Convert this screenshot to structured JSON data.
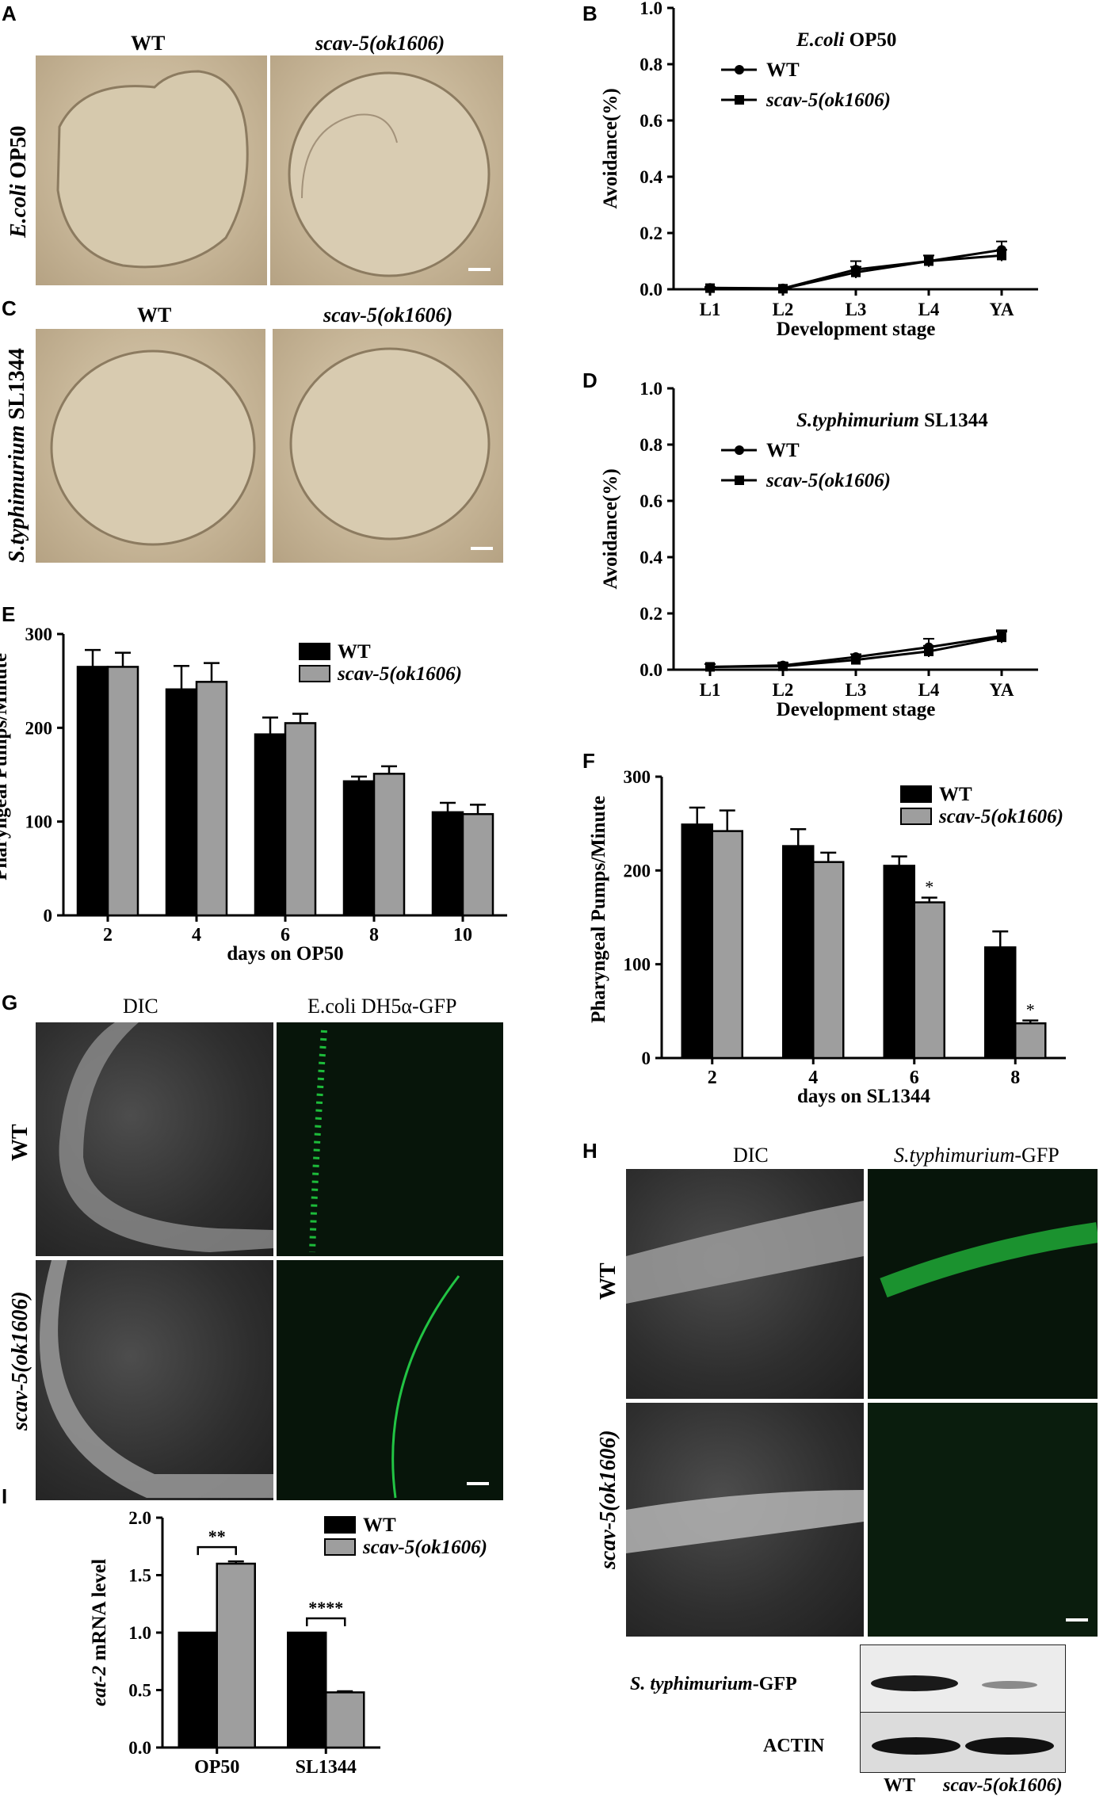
{
  "panels": {
    "A": {
      "letter": "A",
      "left_title": "WT",
      "right_title": "scav-5(ok1606)",
      "side_label_ital": "E.coli",
      "side_label_rest": " OP50"
    },
    "B": {
      "letter": "B"
    },
    "C": {
      "letter": "C",
      "left_title": "WT",
      "right_title": "scav-5(ok1606)",
      "side_label_ital": "S.typhimurium",
      "side_label_rest": " SL1344"
    },
    "D": {
      "letter": "D"
    },
    "E": {
      "letter": "E"
    },
    "F": {
      "letter": "F"
    },
    "G": {
      "letter": "G",
      "col1": "DIC",
      "col2": "E.coli DH5α-GFP",
      "row1": "WT",
      "row2": "scav-5(ok1606)"
    },
    "H": {
      "letter": "H",
      "col1": "DIC",
      "col2_ital": "S.typhimurium",
      "col2_rest": "-GFP",
      "row1": "WT",
      "row2": "scav-5(ok1606)",
      "blot_label1_ital": "S. typhimurium",
      "blot_label1_rest": "-GFP",
      "blot_label2": "ACTIN",
      "lane1": "WT",
      "lane2": "scav-5(ok1606)"
    },
    "I": {
      "letter": "I"
    }
  },
  "chart_data": [
    {
      "id": "B",
      "type": "line",
      "title_ital": "E.coli",
      "title_rest": " OP50",
      "xlabel": "Development stage",
      "ylabel": "Avoidance(%)",
      "categories": [
        "L1",
        "L2",
        "L3",
        "L4",
        "YA"
      ],
      "ylim": [
        0,
        1.0
      ],
      "yticks": [
        "0.0",
        "0.2",
        "0.4",
        "0.6",
        "0.8",
        "1.0"
      ],
      "series": [
        {
          "name": "WT",
          "marker": "circle",
          "values": [
            0.005,
            0.003,
            0.07,
            0.1,
            0.14
          ],
          "err": [
            0.003,
            0.002,
            0.03,
            0.02,
            0.03
          ]
        },
        {
          "name": "scav-5(ok1606)",
          "marker": "square",
          "values": [
            0.004,
            0.002,
            0.06,
            0.1,
            0.12
          ],
          "err": [
            0.003,
            0.002,
            0.02,
            0.02,
            0.02
          ]
        }
      ]
    },
    {
      "id": "D",
      "type": "line",
      "title_ital": "S.typhimurium",
      "title_rest": " SL1344",
      "xlabel": "Development stage",
      "ylabel": "Avoidance(%)",
      "categories": [
        "L1",
        "L2",
        "L3",
        "L4",
        "YA"
      ],
      "ylim": [
        0,
        1.0
      ],
      "yticks": [
        "0.0",
        "0.2",
        "0.4",
        "0.6",
        "0.8",
        "1.0"
      ],
      "series": [
        {
          "name": "WT",
          "marker": "circle",
          "values": [
            0.01,
            0.015,
            0.045,
            0.08,
            0.12
          ],
          "err": [
            0.01,
            0.01,
            0.01,
            0.03,
            0.02
          ]
        },
        {
          "name": "scav-5(ok1606)",
          "marker": "square",
          "values": [
            0.01,
            0.012,
            0.035,
            0.065,
            0.115
          ],
          "err": [
            0.01,
            0.01,
            0.01,
            0.02,
            0.02
          ]
        }
      ]
    },
    {
      "id": "E",
      "type": "bar",
      "xlabel": "days on OP50",
      "ylabel": "Pharyngeal Pumps/Minute",
      "categories": [
        "2",
        "4",
        "6",
        "8",
        "10"
      ],
      "ylim": [
        0,
        300
      ],
      "yticks": [
        "0",
        "100",
        "200",
        "300"
      ],
      "series": [
        {
          "name": "WT",
          "color": "#000000",
          "values": [
            265,
            241,
            193,
            143,
            110
          ],
          "err": [
            18,
            25,
            18,
            5,
            10
          ]
        },
        {
          "name": "scav-5(ok1606)",
          "color": "#9e9e9e",
          "values": [
            265,
            249,
            205,
            151,
            108
          ],
          "err": [
            15,
            20,
            10,
            8,
            10
          ]
        }
      ],
      "annotations": []
    },
    {
      "id": "F",
      "type": "bar",
      "xlabel": "days on SL1344",
      "ylabel": "Pharyngeal Pumps/Minute",
      "categories": [
        "2",
        "4",
        "6",
        "8"
      ],
      "ylim": [
        0,
        300
      ],
      "yticks": [
        "0",
        "100",
        "200",
        "300"
      ],
      "series": [
        {
          "name": "WT",
          "color": "#000000",
          "values": [
            249,
            226,
            205,
            118
          ],
          "err": [
            18,
            18,
            10,
            17
          ]
        },
        {
          "name": "scav-5(ok1606)",
          "color": "#9e9e9e",
          "values": [
            242,
            209,
            166,
            37
          ],
          "err": [
            22,
            10,
            5,
            3
          ]
        }
      ],
      "annotations": [
        {
          "category": "6",
          "series": 1,
          "text": "*"
        },
        {
          "category": "8",
          "series": 1,
          "text": "*"
        }
      ]
    },
    {
      "id": "I",
      "type": "bar",
      "ylabel_ital": "eat-2",
      "ylabel_rest": " mRNA level",
      "categories": [
        "OP50",
        "SL1344"
      ],
      "ylim": [
        0,
        2.0
      ],
      "yticks": [
        "0.0",
        "0.5",
        "1.0",
        "1.5",
        "2.0"
      ],
      "series": [
        {
          "name": "WT",
          "color": "#000000",
          "values": [
            1.0,
            1.0
          ],
          "err": [
            0,
            0
          ]
        },
        {
          "name": "scav-5(ok1606)",
          "color": "#9e9e9e",
          "values": [
            1.6,
            0.48
          ],
          "err": [
            0.02,
            0.01
          ]
        }
      ],
      "significance": [
        {
          "category": "OP50",
          "text": "**"
        },
        {
          "category": "SL1344",
          "text": "****"
        }
      ]
    }
  ]
}
